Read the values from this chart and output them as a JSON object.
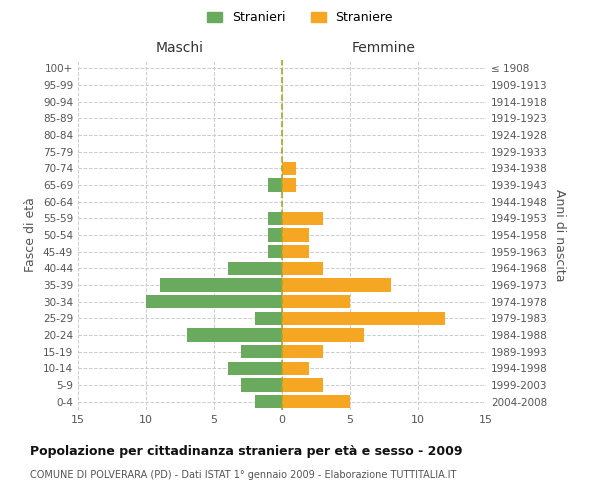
{
  "age_groups": [
    "0-4",
    "5-9",
    "10-14",
    "15-19",
    "20-24",
    "25-29",
    "30-34",
    "35-39",
    "40-44",
    "45-49",
    "50-54",
    "55-59",
    "60-64",
    "65-69",
    "70-74",
    "75-79",
    "80-84",
    "85-89",
    "90-94",
    "95-99",
    "100+"
  ],
  "birth_years": [
    "2004-2008",
    "1999-2003",
    "1994-1998",
    "1989-1993",
    "1984-1988",
    "1979-1983",
    "1974-1978",
    "1969-1973",
    "1964-1968",
    "1959-1963",
    "1954-1958",
    "1949-1953",
    "1944-1948",
    "1939-1943",
    "1934-1938",
    "1929-1933",
    "1924-1928",
    "1919-1923",
    "1914-1918",
    "1909-1913",
    "≤ 1908"
  ],
  "males": [
    2,
    3,
    4,
    3,
    7,
    2,
    10,
    9,
    4,
    1,
    1,
    1,
    0,
    1,
    0,
    0,
    0,
    0,
    0,
    0,
    0
  ],
  "females": [
    5,
    3,
    2,
    3,
    6,
    12,
    5,
    8,
    3,
    2,
    2,
    3,
    0,
    1,
    1,
    0,
    0,
    0,
    0,
    0,
    0
  ],
  "male_color": "#6aaa5e",
  "female_color": "#f5a623",
  "title": "Popolazione per cittadinanza straniera per età e sesso - 2009",
  "subtitle": "COMUNE DI POLVERARA (PD) - Dati ISTAT 1° gennaio 2009 - Elaborazione TUTTITALIA.IT",
  "xlabel_left": "Maschi",
  "xlabel_right": "Femmine",
  "ylabel_left": "Fasce di età",
  "ylabel_right": "Anni di nascita",
  "legend_male": "Stranieri",
  "legend_female": "Straniere",
  "xlim": 15,
  "background_color": "#ffffff",
  "bar_height": 0.8
}
